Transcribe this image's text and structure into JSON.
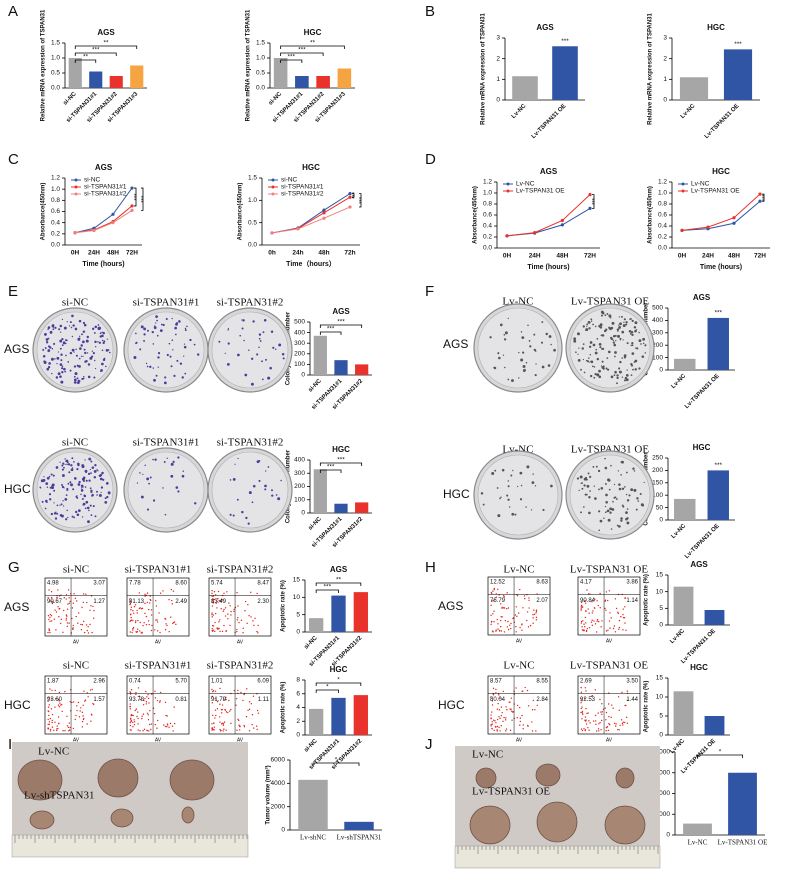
{
  "panel_letters": [
    "A",
    "B",
    "C",
    "D",
    "E",
    "F",
    "G",
    "H",
    "I",
    "J"
  ],
  "images": {
    "E": {
      "rows": [
        {
          "label": "AGS",
          "columns": [
            "si-NC",
            "si-TSPAN31#1",
            "si-TSPAN31#2"
          ]
        },
        {
          "label": "HGC",
          "columns": [
            "si-NC",
            "si-TSPAN31#1",
            "si-TSPAN31#2"
          ]
        }
      ]
    },
    "F": {
      "rows": [
        {
          "label": "AGS",
          "columns": [
            "Lv-NC",
            "Lv-TSPAN31 OE"
          ]
        },
        {
          "label": "HGC",
          "columns": [
            "Lv-NC",
            "Lv-TSPAN31 OE"
          ]
        }
      ]
    },
    "G": {
      "x_label": "AV",
      "rows": [
        {
          "label": "AGS",
          "plots": [
            {
              "label": "si-NC",
              "quadrants": [
                "4.98",
                "3.07",
                "90.67",
                "1.27"
              ]
            },
            {
              "label": "si-TSPAN31#1",
              "quadrants": [
                "7.78",
                "8.60",
                "81.13",
                "2.49"
              ]
            },
            {
              "label": "si-TSPAN31#2",
              "quadrants": [
                "5.74",
                "8.47",
                "83.49",
                "2.30"
              ]
            }
          ]
        },
        {
          "label": "HGC",
          "plots": [
            {
              "label": "si-NC",
              "quadrants": [
                "1.87",
                "2.96",
                "93.60",
                "1.57"
              ]
            },
            {
              "label": "si-TSPAN31#1",
              "quadrants": [
                "0.74",
                "5.70",
                "93.78",
                "0.81"
              ]
            },
            {
              "label": "si-TSPAN31#2",
              "quadrants": [
                "1.01",
                "6.09",
                "91.79",
                "1.11"
              ]
            }
          ]
        }
      ]
    },
    "H": {
      "x_label": "AV",
      "rows": [
        {
          "label": "AGS",
          "plots": [
            {
              "label": "Lv-NC",
              "quadrants": [
                "12.52",
                "8.63",
                "76.79",
                "2.07"
              ]
            },
            {
              "label": "Lv-TSPAN31 OE",
              "quadrants": [
                "4.17",
                "3.86",
                "90.84",
                "1.14"
              ]
            }
          ]
        },
        {
          "label": "HGC",
          "plots": [
            {
              "label": "Lv-NC",
              "quadrants": [
                "8.57",
                "8.55",
                "80.04",
                "2.84"
              ]
            },
            {
              "label": "Lv-TSPAN31 OE",
              "quadrants": [
                "2.69",
                "3.50",
                "92.53",
                "1.44"
              ]
            }
          ]
        }
      ]
    },
    "I": {
      "labels": [
        "Lv-NC",
        "Lv-shTSPAN31"
      ]
    },
    "J": {
      "labels": [
        "Lv-NC",
        "Lv-TSPAN31 OE"
      ]
    }
  },
  "chart_data": [
    {
      "type": "bar",
      "title": "AGS",
      "y_label": "Relative mRNA expression of TSPAN31",
      "categories": [
        "si-NC",
        "si-TSPAN31#1",
        "si-TSPAN31#2",
        "si-TSPAN31#3"
      ],
      "values": [
        1.0,
        0.55,
        0.4,
        0.75
      ],
      "colors": [
        "#a6a6a6",
        "#2f55a4",
        "#e8322b",
        "#f5a442"
      ],
      "ylim": [
        0,
        1.5
      ],
      "yticks": [
        {
          "value": 0,
          "label": "0.0"
        },
        0.5,
        {
          "value": 1,
          "label": "1.0"
        },
        1.5
      ],
      "significance": [
        {
          "label": "**",
          "categories": [
            "si-NC",
            "si-TSPAN31#1"
          ]
        },
        {
          "label": "***",
          "categories": [
            "si-NC",
            "si-TSPAN31#2"
          ]
        },
        {
          "label": "**",
          "categories": [
            "si-NC",
            "si-TSPAN31#3"
          ]
        }
      ]
    },
    {
      "type": "bar",
      "title": "HGC",
      "y_label": "Relative mRNA expression of TSPAN31",
      "categories": [
        "si-NC",
        "si-TSPAN31#1",
        "si-TSPAN31#2",
        "si-TSPAN31#3"
      ],
      "values": [
        1.0,
        0.4,
        0.4,
        0.65
      ],
      "colors": [
        "#a6a6a6",
        "#2f55a4",
        "#e8322b",
        "#f5a442"
      ],
      "ylim": [
        0,
        1.5
      ],
      "yticks": [
        {
          "value": 0,
          "label": "0.0"
        },
        0.5,
        {
          "value": 1,
          "label": "1.0"
        },
        1.5
      ],
      "significance": [
        {
          "label": "***",
          "categories": [
            "si-NC",
            "si-TSPAN31#1"
          ]
        },
        {
          "label": "***",
          "categories": [
            "si-NC",
            "si-TSPAN31#2"
          ]
        },
        {
          "label": "**",
          "categories": [
            "si-NC",
            "si-TSPAN31#3"
          ]
        }
      ]
    },
    {
      "type": "bar",
      "title": "AGS",
      "y_label": "Relative mRNA expression of TSPAN31",
      "categories": [
        "Lv-NC",
        "Lv-TSPAN31 OE"
      ],
      "values": [
        1.15,
        2.6
      ],
      "colors": [
        "#a6a6a6",
        "#2f55a4"
      ],
      "ylim": [
        0,
        3
      ],
      "yticks": [
        0,
        1,
        2,
        3
      ],
      "significance": [
        {
          "label": "***",
          "categories": [
            "Lv-TSPAN31 OE"
          ]
        }
      ]
    },
    {
      "type": "bar",
      "title": "HGC",
      "y_label": "Relative mRNA expression of TSPAN31",
      "categories": [
        "Lv-NC",
        "Lv-TSPAN31 OE"
      ],
      "values": [
        1.1,
        2.45
      ],
      "colors": [
        "#a6a6a6",
        "#2f55a4"
      ],
      "ylim": [
        0,
        3
      ],
      "yticks": [
        0,
        1,
        2,
        3
      ],
      "significance": [
        {
          "label": "***",
          "categories": [
            "Lv-TSPAN31 OE"
          ]
        }
      ]
    },
    {
      "type": "line",
      "title": "AGS",
      "x_label": "Time (hours)",
      "y_label": "Absorbance(450nm)",
      "categories": [
        "0H",
        "24H",
        "48H",
        "72H"
      ],
      "series": [
        {
          "name": "si-NC",
          "color": "#2f55a4",
          "values": [
            0.22,
            0.3,
            0.55,
            1.02
          ]
        },
        {
          "name": "si-TSPAN31#1",
          "color": "#e8322b",
          "values": [
            0.22,
            0.27,
            0.42,
            0.7
          ]
        },
        {
          "name": "si-TSPAN31#2",
          "color": "#f08080",
          "values": [
            0.22,
            0.26,
            0.4,
            0.62
          ]
        }
      ],
      "ylim": [
        0,
        1.2
      ],
      "yticks": [
        {
          "value": 0,
          "label": "0.0"
        },
        0.2,
        0.4,
        0.6,
        0.8,
        {
          "value": 1,
          "label": "1.0"
        },
        1.2
      ],
      "significance": [
        {
          "label": "***",
          "series": [
            "si-NC",
            "si-TSPAN31#1"
          ]
        },
        {
          "label": "***",
          "series": [
            "si-NC",
            "si-TSPAN31#2"
          ]
        }
      ]
    },
    {
      "type": "line",
      "title": "HGC",
      "x_label": "Time（hours）",
      "y_label": "Absorbance(450nm)",
      "categories": [
        "0h",
        "24h",
        "48h",
        "72h"
      ],
      "series": [
        {
          "name": "si-NC",
          "color": "#2f55a4",
          "values": [
            0.27,
            0.38,
            0.78,
            1.15
          ]
        },
        {
          "name": "si-TSPAN31#1",
          "color": "#e8322b",
          "values": [
            0.27,
            0.37,
            0.72,
            1.07
          ]
        },
        {
          "name": "si-TSPAN31#2",
          "color": "#f08080",
          "values": [
            0.27,
            0.36,
            0.6,
            0.85
          ]
        }
      ],
      "ylim": [
        0,
        1.5
      ],
      "yticks": [
        {
          "value": 0,
          "label": "0.0"
        },
        0.5,
        {
          "value": 1,
          "label": "1.0"
        },
        1.5
      ],
      "significance": [
        {
          "label": "***",
          "series": [
            "si-NC",
            "si-TSPAN31#1"
          ]
        },
        {
          "label": "***",
          "series": [
            "si-NC",
            "si-TSPAN31#2"
          ]
        }
      ]
    },
    {
      "type": "line",
      "title": "AGS",
      "x_label": "Time (hours)",
      "y_label": "Absorbance(450nm)",
      "categories": [
        "0H",
        "24H",
        "48H",
        "72H"
      ],
      "series": [
        {
          "name": "Lv-NC",
          "color": "#2f55a4",
          "values": [
            0.22,
            0.27,
            0.42,
            0.72
          ]
        },
        {
          "name": "Lv-TSPAN31 OE",
          "color": "#e8322b",
          "values": [
            0.22,
            0.28,
            0.5,
            0.97
          ]
        }
      ],
      "ylim": [
        0,
        1.2
      ],
      "yticks": [
        {
          "value": 0,
          "label": "0.0"
        },
        0.2,
        0.4,
        0.6,
        0.8,
        {
          "value": 1,
          "label": "1.0"
        },
        1.2
      ],
      "significance": [
        {
          "label": "***",
          "series": [
            "Lv-NC",
            "Lv-TSPAN31 OE"
          ]
        }
      ]
    },
    {
      "type": "line",
      "title": "HGC",
      "x_label": "Time (hours)",
      "y_label": "Absorbance(450nm)",
      "categories": [
        "0H",
        "24H",
        "48H",
        "72H"
      ],
      "series": [
        {
          "name": "Lv-NC",
          "color": "#2f55a4",
          "values": [
            0.32,
            0.35,
            0.45,
            0.85
          ]
        },
        {
          "name": "Lv-TSPAN31 OE",
          "color": "#e8322b",
          "values": [
            0.32,
            0.38,
            0.55,
            0.98
          ]
        }
      ],
      "ylim": [
        0,
        1.2
      ],
      "yticks": [
        {
          "value": 0,
          "label": "0.0"
        },
        0.2,
        0.4,
        0.6,
        0.8,
        {
          "value": 1,
          "label": "1.0"
        },
        1.2
      ],
      "significance": [
        {
          "label": "***",
          "series": [
            "Lv-NC",
            "Lv-TSPAN31 OE"
          ]
        }
      ]
    },
    {
      "type": "bar",
      "title": "AGS",
      "y_label": "Colony formation number",
      "categories": [
        "si-NC",
        "si-TSPAN31#1",
        "si-TSPAN31#2"
      ],
      "values": [
        370,
        140,
        100
      ],
      "colors": [
        "#a6a6a6",
        "#2f55a4",
        "#e8322b"
      ],
      "ylim": [
        0,
        500
      ],
      "yticks": [
        0,
        100,
        200,
        300,
        400,
        500
      ],
      "significance": [
        {
          "label": "***",
          "categories": [
            "si-NC",
            "si-TSPAN31#1"
          ]
        },
        {
          "label": "***",
          "categories": [
            "si-NC",
            "si-TSPAN31#2"
          ]
        }
      ]
    },
    {
      "type": "bar",
      "title": "HGC",
      "y_label": "Colony formation number",
      "categories": [
        "si-NC",
        "si-TSPAN31#1",
        "si-TSPAN31#2"
      ],
      "values": [
        330,
        70,
        80
      ],
      "colors": [
        "#a6a6a6",
        "#2f55a4",
        "#e8322b"
      ],
      "ylim": [
        0,
        400
      ],
      "yticks": [
        0,
        100,
        200,
        300,
        400
      ],
      "significance": [
        {
          "label": "***",
          "categories": [
            "si-NC",
            "si-TSPAN31#1"
          ]
        },
        {
          "label": "***",
          "categories": [
            "si-NC",
            "si-TSPAN31#2"
          ]
        }
      ]
    },
    {
      "type": "bar",
      "title": "AGS",
      "y_label": "Colony formation number",
      "categories": [
        "Lv-NC",
        "Lv-TSPAN31 OE"
      ],
      "values": [
        90,
        420
      ],
      "colors": [
        "#a6a6a6",
        "#2f55a4"
      ],
      "ylim": [
        0,
        500
      ],
      "yticks": [
        0,
        100,
        200,
        300,
        400,
        500
      ],
      "significance": [
        {
          "label": "***",
          "categories": [
            "Lv-TSPAN31 OE"
          ]
        }
      ]
    },
    {
      "type": "bar",
      "title": "HGC",
      "y_label": "Colony formation number",
      "categories": [
        "Lv-NC",
        "Lv-TSPAN31 OE"
      ],
      "values": [
        85,
        200
      ],
      "colors": [
        "#a6a6a6",
        "#2f55a4"
      ],
      "ylim": [
        0,
        250
      ],
      "yticks": [
        0,
        50,
        100,
        150,
        200,
        250
      ],
      "significance": [
        {
          "label": "***",
          "categories": [
            "Lv-TSPAN31 OE"
          ]
        }
      ]
    },
    {
      "type": "bar",
      "title": "AGS",
      "y_label": "Apoptotic rate (%)",
      "categories": [
        "si-NC",
        "si-TSPAN31#1",
        "si-TSPAN31#2"
      ],
      "values": [
        4,
        10.5,
        11.5
      ],
      "colors": [
        "#a6a6a6",
        "#2f55a4",
        "#e8322b"
      ],
      "ylim": [
        0,
        15
      ],
      "yticks": [
        0,
        5,
        10,
        15
      ],
      "significance": [
        {
          "label": "***",
          "categories": [
            "si-NC",
            "si-TSPAN31#1"
          ]
        },
        {
          "label": "**",
          "categories": [
            "si-NC",
            "si-TSPAN31#2"
          ]
        }
      ]
    },
    {
      "type": "bar",
      "title": "HGC",
      "y_label": "Apoptotic rate (%)",
      "categories": [
        "si-NC",
        "si-TSPAN31#1",
        "si-TSPAN31#2"
      ],
      "values": [
        3.8,
        5.4,
        5.8
      ],
      "colors": [
        "#a6a6a6",
        "#2f55a4",
        "#e8322b"
      ],
      "ylim": [
        0,
        8
      ],
      "yticks": [
        0,
        2,
        4,
        6,
        8
      ],
      "significance": [
        {
          "label": "*",
          "categories": [
            "si-NC",
            "si-TSPAN31#1"
          ]
        },
        {
          "label": "*",
          "categories": [
            "si-NC",
            "si-TSPAN31#2"
          ]
        }
      ]
    },
    {
      "type": "bar",
      "title": "AGS",
      "y_label": "Apoptotic rate (%)",
      "categories": [
        "Lv-NC",
        "Lv-TSPAN31 OE"
      ],
      "values": [
        11.5,
        4.5
      ],
      "colors": [
        "#a6a6a6",
        "#2f55a4"
      ],
      "ylim": [
        0,
        15
      ],
      "yticks": [
        0,
        5,
        10,
        15
      ]
    },
    {
      "type": "bar",
      "title": "HGC",
      "y_label": "Apoptotic rate (%)",
      "categories": [
        "Lv-NC",
        "Lv-TSPAN31 OE"
      ],
      "values": [
        11.5,
        5
      ],
      "colors": [
        "#a6a6a6",
        "#2f55a4"
      ],
      "ylim": [
        0,
        15
      ],
      "yticks": [
        0,
        5,
        10,
        15
      ]
    },
    {
      "type": "bar",
      "y_label": "Tumor volume (mm³)",
      "categories": [
        "Lv-shNC",
        "Lv-shTSPAN31"
      ],
      "values": [
        4300,
        700
      ],
      "colors": [
        "#a6a6a6",
        "#2f55a4"
      ],
      "ylim": [
        0,
        6000
      ],
      "yticks": [
        0,
        2000,
        4000,
        6000
      ],
      "significance": [
        {
          "label": "*",
          "categories": [
            "Lv-shNC",
            "Lv-shTSPAN31"
          ]
        }
      ]
    },
    {
      "type": "bar",
      "y_label": "Tumor volume (mm³)",
      "categories": [
        "Lv-NC",
        "Lv-TSPAN31 OE"
      ],
      "values": [
        550,
        3000
      ],
      "colors": [
        "#a6a6a6",
        "#2f55a4"
      ],
      "ylim": [
        0,
        4000
      ],
      "yticks": [
        0,
        1000,
        2000,
        3000,
        4000
      ],
      "significance": [
        {
          "label": "*",
          "categories": [
            "Lv-NC",
            "Lv-TSPAN31 OE"
          ]
        }
      ]
    }
  ]
}
